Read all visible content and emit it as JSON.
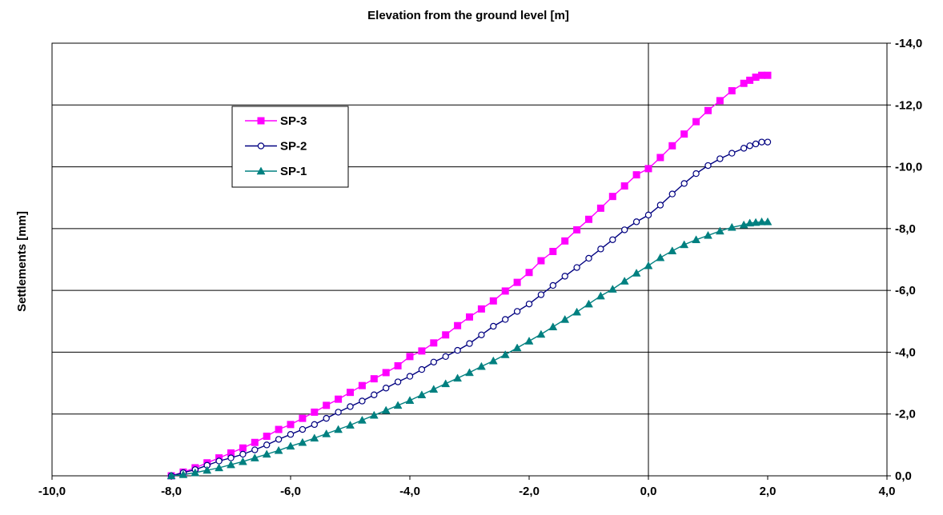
{
  "chart_data": {
    "type": "line",
    "title": "",
    "xlabel": "Elevation from the ground level [m]",
    "ylabel": "Settlements [mm]",
    "xlim": [
      -10,
      4
    ],
    "ylim": [
      0,
      -14
    ],
    "y_axis_position": "right",
    "y_reversed": true,
    "grid": "horizontal",
    "legend_position": "upper-left",
    "x_ticks": [
      -10,
      -8,
      -6,
      -4,
      -2,
      0,
      2,
      4
    ],
    "x_tick_labels": [
      "-10,0",
      "-8,0",
      "-6,0",
      "-4,0",
      "-2,0",
      "0,0",
      "2,0",
      "4,0"
    ],
    "y_ticks": [
      0,
      -2,
      -4,
      -6,
      -8,
      -10,
      -12,
      -14
    ],
    "y_tick_labels": [
      "0,0",
      "-2,0",
      "-4,0",
      "-6,0",
      "-8,0",
      "-10,0",
      "-12,0",
      "-14,0"
    ],
    "series": [
      {
        "name": "SP-3",
        "color": "#ff00ff",
        "marker": "square",
        "points": [
          [
            -8.0,
            0.0
          ],
          [
            -7.8,
            -0.12
          ],
          [
            -7.6,
            -0.26
          ],
          [
            -7.4,
            -0.42
          ],
          [
            -7.2,
            -0.58
          ],
          [
            -7.0,
            -0.74
          ],
          [
            -6.8,
            -0.9
          ],
          [
            -6.6,
            -1.08
          ],
          [
            -6.4,
            -1.28
          ],
          [
            -6.2,
            -1.5
          ],
          [
            -6.0,
            -1.66
          ],
          [
            -5.8,
            -1.86
          ],
          [
            -5.6,
            -2.06
          ],
          [
            -5.4,
            -2.28
          ],
          [
            -5.2,
            -2.48
          ],
          [
            -5.0,
            -2.7
          ],
          [
            -4.8,
            -2.92
          ],
          [
            -4.6,
            -3.14
          ],
          [
            -4.4,
            -3.34
          ],
          [
            -4.2,
            -3.56
          ],
          [
            -4.0,
            -3.86
          ],
          [
            -3.8,
            -4.04
          ],
          [
            -3.6,
            -4.3
          ],
          [
            -3.4,
            -4.56
          ],
          [
            -3.2,
            -4.86
          ],
          [
            -3.0,
            -5.14
          ],
          [
            -2.8,
            -5.4
          ],
          [
            -2.6,
            -5.66
          ],
          [
            -2.4,
            -5.98
          ],
          [
            -2.2,
            -6.26
          ],
          [
            -2.0,
            -6.58
          ],
          [
            -1.8,
            -6.96
          ],
          [
            -1.6,
            -7.26
          ],
          [
            -1.4,
            -7.6
          ],
          [
            -1.2,
            -7.96
          ],
          [
            -1.0,
            -8.3
          ],
          [
            -0.8,
            -8.66
          ],
          [
            -0.6,
            -9.04
          ],
          [
            -0.4,
            -9.38
          ],
          [
            -0.2,
            -9.74
          ],
          [
            0.0,
            -9.94
          ],
          [
            0.2,
            -10.3
          ],
          [
            0.4,
            -10.68
          ],
          [
            0.6,
            -11.06
          ],
          [
            0.8,
            -11.46
          ],
          [
            1.0,
            -11.82
          ],
          [
            1.2,
            -12.14
          ],
          [
            1.4,
            -12.46
          ],
          [
            1.6,
            -12.7
          ],
          [
            1.7,
            -12.8
          ],
          [
            1.8,
            -12.9
          ],
          [
            1.9,
            -12.96
          ],
          [
            2.0,
            -12.96
          ]
        ]
      },
      {
        "name": "SP-2",
        "color": "#000080",
        "marker": "circle-open",
        "points": [
          [
            -8.0,
            0.0
          ],
          [
            -7.8,
            -0.1
          ],
          [
            -7.6,
            -0.2
          ],
          [
            -7.4,
            -0.34
          ],
          [
            -7.2,
            -0.48
          ],
          [
            -7.0,
            -0.58
          ],
          [
            -6.8,
            -0.7
          ],
          [
            -6.6,
            -0.84
          ],
          [
            -6.4,
            -1.0
          ],
          [
            -6.2,
            -1.18
          ],
          [
            -6.0,
            -1.34
          ],
          [
            -5.8,
            -1.5
          ],
          [
            -5.6,
            -1.66
          ],
          [
            -5.4,
            -1.86
          ],
          [
            -5.2,
            -2.06
          ],
          [
            -5.0,
            -2.24
          ],
          [
            -4.8,
            -2.42
          ],
          [
            -4.6,
            -2.62
          ],
          [
            -4.4,
            -2.84
          ],
          [
            -4.2,
            -3.04
          ],
          [
            -4.0,
            -3.22
          ],
          [
            -3.8,
            -3.44
          ],
          [
            -3.6,
            -3.68
          ],
          [
            -3.4,
            -3.86
          ],
          [
            -3.2,
            -4.06
          ],
          [
            -3.0,
            -4.28
          ],
          [
            -2.8,
            -4.56
          ],
          [
            -2.6,
            -4.84
          ],
          [
            -2.4,
            -5.06
          ],
          [
            -2.2,
            -5.32
          ],
          [
            -2.0,
            -5.56
          ],
          [
            -1.8,
            -5.86
          ],
          [
            -1.6,
            -6.16
          ],
          [
            -1.4,
            -6.46
          ],
          [
            -1.2,
            -6.74
          ],
          [
            -1.0,
            -7.04
          ],
          [
            -0.8,
            -7.34
          ],
          [
            -0.6,
            -7.64
          ],
          [
            -0.4,
            -7.96
          ],
          [
            -0.2,
            -8.22
          ],
          [
            0.0,
            -8.44
          ],
          [
            0.2,
            -8.76
          ],
          [
            0.4,
            -9.12
          ],
          [
            0.6,
            -9.46
          ],
          [
            0.8,
            -9.78
          ],
          [
            1.0,
            -10.04
          ],
          [
            1.2,
            -10.26
          ],
          [
            1.4,
            -10.44
          ],
          [
            1.6,
            -10.6
          ],
          [
            1.7,
            -10.68
          ],
          [
            1.8,
            -10.74
          ],
          [
            1.9,
            -10.8
          ],
          [
            2.0,
            -10.8
          ]
        ]
      },
      {
        "name": "SP-1",
        "color": "#008080",
        "marker": "triangle",
        "points": [
          [
            -8.0,
            0.0
          ],
          [
            -7.8,
            -0.04
          ],
          [
            -7.6,
            -0.1
          ],
          [
            -7.4,
            -0.18
          ],
          [
            -7.2,
            -0.26
          ],
          [
            -7.0,
            -0.36
          ],
          [
            -6.8,
            -0.46
          ],
          [
            -6.6,
            -0.58
          ],
          [
            -6.4,
            -0.7
          ],
          [
            -6.2,
            -0.82
          ],
          [
            -6.0,
            -0.96
          ],
          [
            -5.8,
            -1.08
          ],
          [
            -5.6,
            -1.22
          ],
          [
            -5.4,
            -1.36
          ],
          [
            -5.2,
            -1.5
          ],
          [
            -5.0,
            -1.64
          ],
          [
            -4.8,
            -1.8
          ],
          [
            -4.6,
            -1.96
          ],
          [
            -4.4,
            -2.12
          ],
          [
            -4.2,
            -2.28
          ],
          [
            -4.0,
            -2.44
          ],
          [
            -3.8,
            -2.62
          ],
          [
            -3.6,
            -2.8
          ],
          [
            -3.4,
            -2.98
          ],
          [
            -3.2,
            -3.16
          ],
          [
            -3.0,
            -3.34
          ],
          [
            -2.8,
            -3.54
          ],
          [
            -2.6,
            -3.72
          ],
          [
            -2.4,
            -3.92
          ],
          [
            -2.2,
            -4.14
          ],
          [
            -2.0,
            -4.36
          ],
          [
            -1.8,
            -4.58
          ],
          [
            -1.6,
            -4.82
          ],
          [
            -1.4,
            -5.06
          ],
          [
            -1.2,
            -5.3
          ],
          [
            -1.0,
            -5.56
          ],
          [
            -0.8,
            -5.82
          ],
          [
            -0.6,
            -6.04
          ],
          [
            -0.4,
            -6.3
          ],
          [
            -0.2,
            -6.56
          ],
          [
            0.0,
            -6.8
          ],
          [
            0.2,
            -7.06
          ],
          [
            0.4,
            -7.28
          ],
          [
            0.6,
            -7.48
          ],
          [
            0.8,
            -7.64
          ],
          [
            1.0,
            -7.78
          ],
          [
            1.2,
            -7.92
          ],
          [
            1.4,
            -8.04
          ],
          [
            1.6,
            -8.12
          ],
          [
            1.7,
            -8.18
          ],
          [
            1.8,
            -8.2
          ],
          [
            1.9,
            -8.22
          ],
          [
            2.0,
            -8.22
          ]
        ]
      }
    ]
  }
}
